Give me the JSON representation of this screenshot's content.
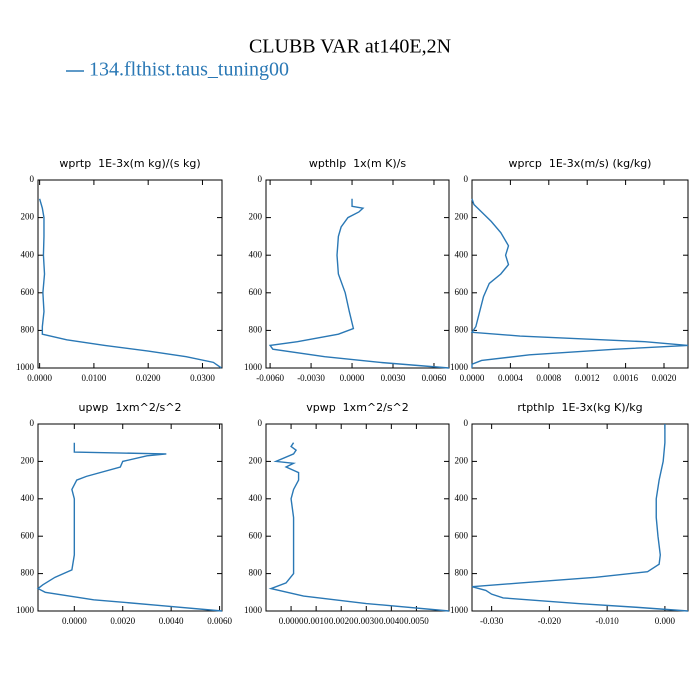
{
  "title": "CLUBB VAR at140E,2N",
  "chart_data": [
    {
      "type": "line",
      "title": "wprtp  1E-3x(m kg)/(s kg)",
      "y": [
        100,
        150,
        200,
        300,
        400,
        500,
        600,
        700,
        780,
        820,
        850,
        880,
        910,
        940,
        970,
        1000
      ],
      "series": [
        {
          "name": "134.flthist.taus_tuning00",
          "color": "#2a78b5",
          "values": [
            0.0,
            0.0005,
            0.0008,
            0.0008,
            0.0007,
            0.0009,
            0.0006,
            0.0008,
            0.0005,
            0.0005,
            0.005,
            0.012,
            0.02,
            0.027,
            0.032,
            0.0335
          ]
        }
      ],
      "xlim": [
        -0.0003,
        0.0336
      ],
      "xticks": [
        {
          "value": 0,
          "label": "0.0000"
        },
        {
          "value": 0.01,
          "label": "0.0100"
        },
        {
          "value": 0.02,
          "label": "0.0200"
        },
        {
          "value": 0.03,
          "label": "0.0300"
        }
      ],
      "ylim": [
        1000,
        0
      ],
      "yticks": [
        0,
        200,
        400,
        600,
        800,
        1000
      ]
    },
    {
      "type": "line",
      "title": "wpthlp  1x(m K)/s",
      "y": [
        100,
        140,
        150,
        170,
        200,
        250,
        300,
        400,
        500,
        600,
        700,
        790,
        820,
        860,
        880,
        900,
        940,
        970,
        1000
      ],
      "series": [
        {
          "name": "134.flthist.taus_tuning00",
          "color": "#2a78b5",
          "values": [
            0.0,
            0.0,
            0.0008,
            0.0005,
            -0.0003,
            -0.0008,
            -0.001,
            -0.0011,
            -0.001,
            -0.0005,
            -0.0002,
            0.0001,
            -0.001,
            -0.004,
            -0.006,
            -0.0058,
            -0.002,
            0.002,
            0.0071
          ]
        }
      ],
      "xlim": [
        -0.0063,
        0.0071
      ],
      "xticks": [
        {
          "value": -0.006,
          "label": "-0.0060"
        },
        {
          "value": -0.003,
          "label": "-0.0030"
        },
        {
          "value": 0,
          "label": "0.0000"
        },
        {
          "value": 0.003,
          "label": "0.0030"
        },
        {
          "value": 0.006,
          "label": "0.0060"
        }
      ],
      "ylim": [
        1000,
        0
      ],
      "yticks": [
        0,
        200,
        400,
        600,
        800,
        1000
      ]
    },
    {
      "type": "line",
      "title": "wprcp  1E-3x(m/s) (kg/kg)",
      "y": [
        100,
        130,
        170,
        220,
        280,
        350,
        400,
        450,
        500,
        550,
        620,
        700,
        780,
        810,
        830,
        860,
        880,
        900,
        930,
        960,
        980,
        1000
      ],
      "series": [
        {
          "name": "134.flthist.taus_tuning00",
          "color": "#2a78b5",
          "values": [
            0.0,
            2e-05,
            0.0001,
            0.0002,
            0.0003,
            0.00038,
            0.00035,
            0.00038,
            0.0003,
            0.00018,
            0.00012,
            8e-05,
            4e-05,
            0.0,
            0.0005,
            0.0018,
            0.00225,
            0.0015,
            0.0006,
            0.0001,
            0.0,
            0.0
          ]
        }
      ],
      "xlim": [
        0,
        0.00225
      ],
      "xticks": [
        {
          "value": 0,
          "label": "0.0000"
        },
        {
          "value": 0.0004,
          "label": "0.0004"
        },
        {
          "value": 0.0008,
          "label": "0.0008"
        },
        {
          "value": 0.0012,
          "label": "0.0012"
        },
        {
          "value": 0.0016,
          "label": "0.0016"
        },
        {
          "value": 0.002,
          "label": "0.0020"
        }
      ],
      "ylim": [
        1000,
        0
      ],
      "yticks": [
        0,
        200,
        400,
        600,
        800,
        1000
      ]
    },
    {
      "type": "line",
      "title": "upwp  1xm^2/s^2",
      "y": [
        100,
        150,
        160,
        170,
        200,
        230,
        280,
        300,
        350,
        400,
        500,
        600,
        700,
        780,
        820,
        860,
        880,
        900,
        940,
        970,
        1000
      ],
      "series": [
        {
          "name": "134.flthist.taus_tuning00",
          "color": "#2a78b5",
          "values": [
            0.0,
            0.0,
            0.0038,
            0.003,
            0.002,
            0.0019,
            0.0005,
            0.0001,
            -0.0001,
            0.0,
            0.0,
            0.0,
            0.0,
            -0.0001,
            -0.0008,
            -0.0013,
            -0.0015,
            -0.0012,
            0.0008,
            0.0035,
            0.0061
          ]
        }
      ],
      "xlim": [
        -0.0015,
        0.0061
      ],
      "xticks": [
        {
          "value": 0,
          "label": "0.0000"
        },
        {
          "value": 0.002,
          "label": "0.0020"
        },
        {
          "value": 0.004,
          "label": "0.0040"
        },
        {
          "value": 0.006,
          "label": "0.0060"
        }
      ],
      "ylim": [
        1000,
        0
      ],
      "yticks": [
        0,
        200,
        400,
        600,
        800,
        1000
      ]
    },
    {
      "type": "line",
      "title": "vpwp  1xm^2/s^2",
      "y": [
        100,
        120,
        140,
        160,
        200,
        210,
        230,
        260,
        300,
        350,
        400,
        500,
        600,
        700,
        800,
        850,
        880,
        920,
        960,
        1000
      ],
      "series": [
        {
          "name": "134.flthist.taus_tuning00",
          "color": "#2a78b5",
          "values": [
            0.0001,
            0.0,
            0.0002,
            0.0001,
            -0.0006,
            0.0001,
            -0.0002,
            0.0003,
            0.0003,
            0.0001,
            0.0,
            0.0001,
            0.0001,
            0.0001,
            0.0001,
            -0.0002,
            -0.0008,
            0.0005,
            0.003,
            0.0063
          ]
        }
      ],
      "xlim": [
        -0.001,
        0.0063
      ],
      "xticks": [
        {
          "value": 0,
          "label": "0.0000"
        },
        {
          "value": 0.001,
          "label": "0.0010"
        },
        {
          "value": 0.002,
          "label": "0.0020"
        },
        {
          "value": 0.003,
          "label": "0.0030"
        },
        {
          "value": 0.004,
          "label": "0.0040"
        },
        {
          "value": 0.005,
          "label": "0.0050"
        }
      ],
      "ylim": [
        1000,
        0
      ],
      "yticks": [
        0,
        200,
        400,
        600,
        800,
        1000
      ]
    },
    {
      "type": "line",
      "title": "rtpthlp  1E-3x(kg K)/kg",
      "y": [
        0,
        100,
        200,
        300,
        400,
        500,
        600,
        700,
        750,
        790,
        820,
        850,
        870,
        890,
        910,
        930,
        960,
        980,
        1000
      ],
      "series": [
        {
          "name": "134.flthist.taus_tuning00",
          "color": "#2a78b5",
          "values": [
            0.0,
            0.0,
            -0.0003,
            -0.001,
            -0.0015,
            -0.0015,
            -0.0012,
            -0.0008,
            -0.001,
            -0.003,
            -0.012,
            -0.025,
            -0.0334,
            -0.031,
            -0.03,
            -0.028,
            -0.015,
            -0.005,
            0.004
          ]
        }
      ],
      "xlim": [
        -0.0334,
        0.004
      ],
      "xticks": [
        {
          "value": -0.03,
          "label": "-0.030"
        },
        {
          "value": -0.02,
          "label": "-0.020"
        },
        {
          "value": -0.01,
          "label": "-0.010"
        },
        {
          "value": 0,
          "label": "0.000"
        }
      ],
      "ylim": [
        1000,
        0
      ],
      "yticks": [
        0,
        200,
        400,
        600,
        800,
        1000
      ]
    }
  ]
}
